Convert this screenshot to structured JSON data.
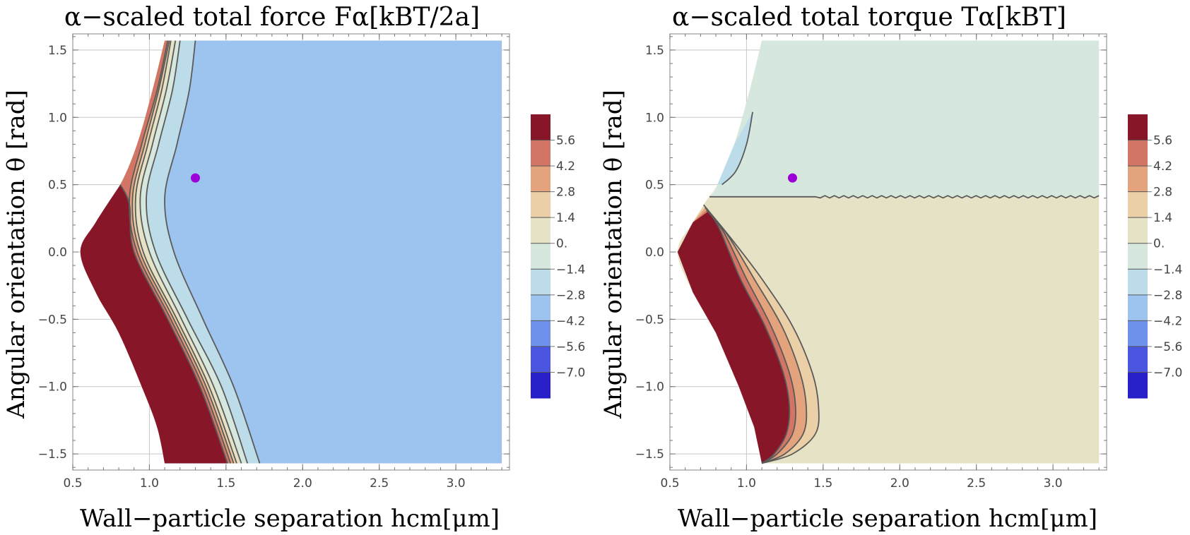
{
  "chart_data": [
    {
      "type": "contour",
      "title": "α−scaled total force Fα[kBT/2a]",
      "xlabel": "Wall−particle separation hcm[μm]",
      "ylabel": "Angular orientation θ [rad]",
      "xlim": [
        0.5,
        3.35
      ],
      "ylim": [
        -1.62,
        1.62
      ],
      "x_ticks": [
        "0.5",
        "1.0",
        "1.5",
        "2.0",
        "2.5",
        "3.0"
      ],
      "x_tick_values": [
        0.5,
        1.0,
        1.5,
        2.0,
        2.5,
        3.0
      ],
      "y_ticks": [
        "1.5",
        "1.0",
        "0.5",
        "0.0",
        "−0.5",
        "−1.0",
        "−1.5"
      ],
      "y_tick_values": [
        1.5,
        1.0,
        0.5,
        0.0,
        -0.5,
        -1.0,
        -1.5
      ],
      "grid": true,
      "legend_placement": "right",
      "legend_levels": [
        "5.6",
        "4.2",
        "2.8",
        "1.4",
        "0.",
        "−1.4",
        "−2.8",
        "−4.2",
        "−5.6",
        "−7.0"
      ],
      "legend_colors": [
        "#861628",
        "#d37564",
        "#e3a47d",
        "#ebcfa6",
        "#e6e2c5",
        "#d6e7dd",
        "#bcdcea",
        "#9dc3ef",
        "#6e92ec",
        "#4b56e0",
        "#2a20c9"
      ],
      "marker": {
        "x": 1.3,
        "y": 0.55,
        "color": "#9d00d6"
      },
      "domain_left_boundary": [
        [
          1.1,
          1.57
        ],
        [
          1.02,
          1.2
        ],
        [
          0.92,
          0.8
        ],
        [
          0.81,
          0.5
        ],
        [
          0.65,
          0.22
        ],
        [
          0.55,
          0.0
        ],
        [
          0.65,
          -0.3
        ],
        [
          0.8,
          -0.6
        ],
        [
          0.95,
          -1.0
        ],
        [
          1.05,
          -1.3
        ],
        [
          1.1,
          -1.57
        ]
      ],
      "x_right": 3.3,
      "y_range": [
        -1.57,
        1.57
      ],
      "background_color": "#9dc3ef",
      "bands": [
        {
          "color": "#bcdcea",
          "x_right_edge": [
            [
              1.3,
              1.57
            ],
            [
              1.26,
              1.2
            ],
            [
              1.18,
              0.8
            ],
            [
              1.1,
              0.4
            ],
            [
              1.16,
              0.0
            ],
            [
              1.35,
              -0.5
            ],
            [
              1.55,
              -1.0
            ],
            [
              1.72,
              -1.57
            ]
          ]
        },
        {
          "color": "#d6e7dd",
          "x_right_edge": [
            [
              1.2,
              1.57
            ],
            [
              1.15,
              1.2
            ],
            [
              1.06,
              0.8
            ],
            [
              0.98,
              0.4
            ],
            [
              1.04,
              0.0
            ],
            [
              1.25,
              -0.5
            ],
            [
              1.47,
              -1.0
            ],
            [
              1.64,
              -1.57
            ]
          ]
        },
        {
          "color": "#e6e2c5",
          "x_right_edge": [
            [
              1.17,
              1.57
            ],
            [
              1.11,
              1.2
            ],
            [
              1.02,
              0.8
            ],
            [
              0.94,
              0.4
            ],
            [
              1.0,
              0.0
            ],
            [
              1.21,
              -0.5
            ],
            [
              1.42,
              -1.0
            ],
            [
              1.6,
              -1.57
            ]
          ]
        },
        {
          "color": "#ebcfa6",
          "x_right_edge": [
            [
              1.14,
              1.57
            ],
            [
              1.08,
              1.2
            ],
            [
              0.99,
              0.8
            ],
            [
              0.91,
              0.4
            ],
            [
              0.96,
              0.0
            ],
            [
              1.18,
              -0.5
            ],
            [
              1.39,
              -1.0
            ],
            [
              1.57,
              -1.57
            ]
          ]
        },
        {
          "color": "#e3a47d",
          "x_right_edge": [
            [
              1.13,
              1.57
            ],
            [
              1.06,
              1.2
            ],
            [
              0.97,
              0.8
            ],
            [
              0.89,
              0.4
            ],
            [
              0.94,
              0.0
            ],
            [
              1.16,
              -0.5
            ],
            [
              1.37,
              -1.0
            ],
            [
              1.55,
              -1.57
            ]
          ]
        },
        {
          "color": "#d37564",
          "x_right_edge": [
            [
              1.12,
              1.57
            ],
            [
              1.05,
              1.2
            ],
            [
              0.95,
              0.8
            ],
            [
              0.87,
              0.4
            ],
            [
              0.92,
              0.0
            ],
            [
              1.14,
              -0.5
            ],
            [
              1.35,
              -1.0
            ],
            [
              1.53,
              -1.57
            ]
          ]
        },
        {
          "color": "#861628",
          "x_right_edge": [
            [
              0.81,
              0.5
            ],
            [
              0.87,
              0.35
            ],
            [
              0.9,
              0.0
            ],
            [
              1.12,
              -0.5
            ],
            [
              1.33,
              -1.0
            ],
            [
              1.51,
              -1.57
            ]
          ]
        }
      ]
    },
    {
      "type": "contour",
      "title": "α−scaled total torque Tα[kBT]",
      "xlabel": "Wall−particle separation hcm[μm]",
      "ylabel": "Angular orientation θ [rad]",
      "xlim": [
        0.5,
        3.35
      ],
      "ylim": [
        -1.62,
        1.62
      ],
      "x_ticks": [
        "0.5",
        "1.0",
        "1.5",
        "2.0",
        "2.5",
        "3.0"
      ],
      "x_tick_values": [
        0.5,
        1.0,
        1.5,
        2.0,
        2.5,
        3.0
      ],
      "y_ticks": [
        "1.5",
        "1.0",
        "0.5",
        "0.0",
        "−0.5",
        "−1.0",
        "−1.5"
      ],
      "y_tick_values": [
        1.5,
        1.0,
        0.5,
        0.0,
        -0.5,
        -1.0,
        -1.5
      ],
      "grid": true,
      "legend_placement": "right",
      "legend_levels": [
        "5.6",
        "4.2",
        "2.8",
        "1.4",
        "0.",
        "−1.4",
        "−2.8",
        "−4.2",
        "−5.6",
        "−7.0"
      ],
      "legend_colors": [
        "#861628",
        "#d37564",
        "#e3a47d",
        "#ebcfa6",
        "#e6e2c5",
        "#d6e7dd",
        "#bcdcea",
        "#9dc3ef",
        "#6e92ec",
        "#4b56e0",
        "#2a20c9"
      ],
      "marker": {
        "x": 1.3,
        "y": 0.55,
        "color": "#9d00d6"
      },
      "domain_left_boundary": [
        [
          1.1,
          1.57
        ],
        [
          1.02,
          1.2
        ],
        [
          0.92,
          0.8
        ],
        [
          0.81,
          0.5
        ],
        [
          0.65,
          0.22
        ],
        [
          0.55,
          0.0
        ],
        [
          0.65,
          -0.3
        ],
        [
          0.8,
          -0.6
        ],
        [
          0.95,
          -1.0
        ],
        [
          1.05,
          -1.3
        ],
        [
          1.1,
          -1.57
        ]
      ],
      "x_right": 3.3,
      "y_range": [
        -1.57,
        1.57
      ],
      "upper_color": "#d6e7dd",
      "lower_color": "#e6e2c5",
      "split_y": 0.41,
      "cap_band": {
        "color": "#bcdcea",
        "edge": [
          [
            1.04,
            1.04
          ],
          [
            1.0,
            0.8
          ],
          [
            0.93,
            0.6
          ],
          [
            0.84,
            0.5
          ]
        ]
      },
      "lobes": [
        {
          "color": "#ebcfa6",
          "edge": [
            [
              0.72,
              0.35
            ],
            [
              0.9,
              0.1
            ],
            [
              1.1,
              -0.2
            ],
            [
              1.3,
              -0.55
            ],
            [
              1.43,
              -0.9
            ],
            [
              1.47,
              -1.15
            ],
            [
              1.45,
              -1.35
            ],
            [
              1.3,
              -1.5
            ],
            [
              1.1,
              -1.57
            ]
          ]
        },
        {
          "color": "#e3a47d",
          "edge": [
            [
              0.73,
              0.33
            ],
            [
              0.88,
              0.12
            ],
            [
              1.05,
              -0.2
            ],
            [
              1.23,
              -0.55
            ],
            [
              1.35,
              -0.9
            ],
            [
              1.39,
              -1.15
            ],
            [
              1.37,
              -1.35
            ],
            [
              1.25,
              -1.5
            ],
            [
              1.1,
              -1.57
            ]
          ]
        },
        {
          "color": "#d37564",
          "edge": [
            [
              0.74,
              0.31
            ],
            [
              0.85,
              0.15
            ],
            [
              1.0,
              -0.2
            ],
            [
              1.16,
              -0.55
            ],
            [
              1.28,
              -0.9
            ],
            [
              1.32,
              -1.15
            ],
            [
              1.3,
              -1.35
            ],
            [
              1.2,
              -1.5
            ],
            [
              1.1,
              -1.57
            ]
          ]
        },
        {
          "color": "#861628",
          "edge": [
            [
              0.75,
              0.3
            ],
            [
              0.82,
              0.18
            ],
            [
              0.96,
              -0.2
            ],
            [
              1.12,
              -0.55
            ],
            [
              1.24,
              -0.9
            ],
            [
              1.28,
              -1.15
            ],
            [
              1.26,
              -1.35
            ],
            [
              1.18,
              -1.5
            ],
            [
              1.1,
              -1.57
            ]
          ]
        }
      ]
    }
  ]
}
